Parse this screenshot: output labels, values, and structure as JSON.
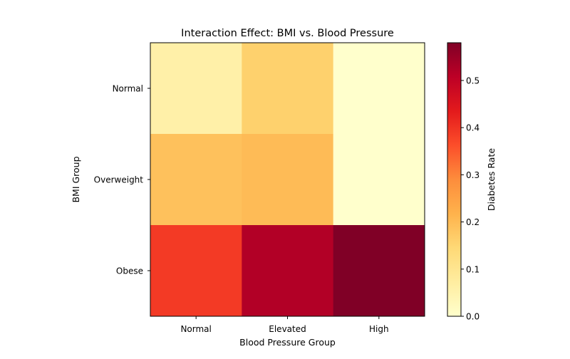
{
  "chart_data": {
    "type": "heatmap",
    "title": "Interaction Effect: BMI vs. Blood Pressure",
    "xlabel": "Blood Pressure Group",
    "ylabel": "BMI Group",
    "x_categories": [
      "Normal",
      "Elevated",
      "High"
    ],
    "y_categories": [
      "Normal",
      "Overweight",
      "Obese"
    ],
    "values": [
      [
        0.06,
        0.16,
        0.0
      ],
      [
        0.19,
        0.2,
        0.0
      ],
      [
        0.39,
        0.52,
        0.58
      ]
    ],
    "colormap": "YlOrRd",
    "colorbar": {
      "label": "Diabetes Rate",
      "min": 0.0,
      "max": 0.58,
      "ticks": [
        0.0,
        0.1,
        0.2,
        0.3,
        0.4,
        0.5
      ],
      "tick_labels": [
        "0.0",
        "0.1",
        "0.2",
        "0.3",
        "0.4",
        "0.5"
      ]
    },
    "grid": false
  }
}
